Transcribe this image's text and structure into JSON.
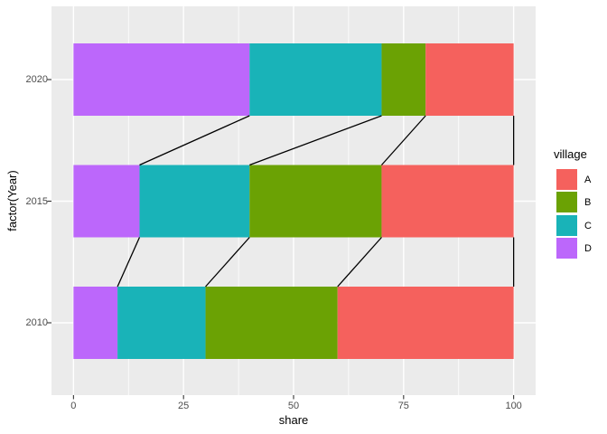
{
  "chart_data": {
    "type": "bar",
    "orientation": "horizontal-stacked",
    "title": "",
    "xlabel": "share",
    "ylabel": "factor(Year)",
    "categories": [
      "2010",
      "2015",
      "2020"
    ],
    "stack_order": [
      "D",
      "C",
      "B",
      "A"
    ],
    "series": [
      {
        "name": "A",
        "color": "#f5615d",
        "values": [
          40,
          30,
          20
        ]
      },
      {
        "name": "B",
        "color": "#6ba204",
        "values": [
          30,
          30,
          10
        ]
      },
      {
        "name": "C",
        "color": "#19b3b8",
        "values": [
          20,
          25,
          30
        ]
      },
      {
        "name": "D",
        "color": "#bc67fb",
        "values": [
          10,
          15,
          40
        ]
      }
    ],
    "x_ticks": [
      0,
      25,
      50,
      75,
      100
    ],
    "x_minor_ticks": [
      12.5,
      37.5,
      62.5,
      87.5
    ],
    "xlim": [
      -5,
      105
    ],
    "grid": true,
    "connectors": "black lines join cumulative stack boundaries (D, D+C, D+C+B, 100) between adjacent year bars",
    "legend": {
      "title": "village",
      "entries": [
        "A",
        "B",
        "C",
        "D"
      ],
      "position": "right"
    },
    "colors": {
      "panel_background": "#ebebeb",
      "gridline": "#ffffff",
      "connector_line": "#000000",
      "tick_mark": "#333333",
      "tick_label_text": "#4d4d4d",
      "axis_title_text": "#000000"
    }
  }
}
